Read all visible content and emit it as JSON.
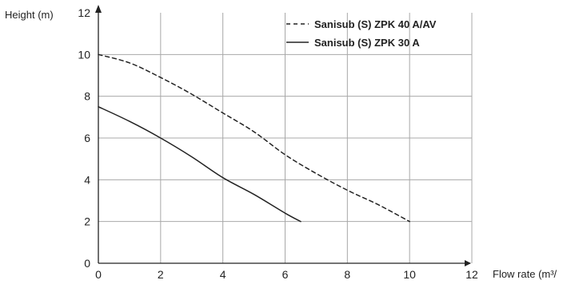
{
  "chart_data": {
    "type": "line",
    "xlabel": "Flow rate (m³/",
    "ylabel": "Height (m)",
    "xlim": [
      0,
      12
    ],
    "ylim": [
      0,
      12
    ],
    "x_ticks": [
      "0",
      "2",
      "4",
      "6",
      "8",
      "10",
      "12"
    ],
    "y_ticks": [
      "0",
      "2",
      "4",
      "6",
      "8",
      "10",
      "12"
    ],
    "x_tick_values": [
      0,
      2,
      4,
      6,
      8,
      10,
      12
    ],
    "y_tick_values": [
      0,
      2,
      4,
      6,
      8,
      10,
      12
    ],
    "grid": true,
    "legend_position": "top-right",
    "series": [
      {
        "name": "Sanisub (S) ZPK 40 A/AV",
        "style": "dashed",
        "color": "#222222",
        "points": [
          [
            0,
            10
          ],
          [
            1,
            9.6
          ],
          [
            2,
            8.9
          ],
          [
            3,
            8.1
          ],
          [
            4,
            7.2
          ],
          [
            5,
            6.3
          ],
          [
            6,
            5.2
          ],
          [
            7,
            4.3
          ],
          [
            8,
            3.5
          ],
          [
            9,
            2.8
          ],
          [
            10,
            2
          ]
        ]
      },
      {
        "name": "Sanisub (S) ZPK 30 A",
        "style": "solid",
        "color": "#222222",
        "points": [
          [
            0,
            7.5
          ],
          [
            1,
            6.8
          ],
          [
            2,
            6.0
          ],
          [
            3,
            5.1
          ],
          [
            4,
            4.1
          ],
          [
            5,
            3.3
          ],
          [
            6,
            2.4
          ],
          [
            6.5,
            2
          ]
        ]
      }
    ]
  }
}
